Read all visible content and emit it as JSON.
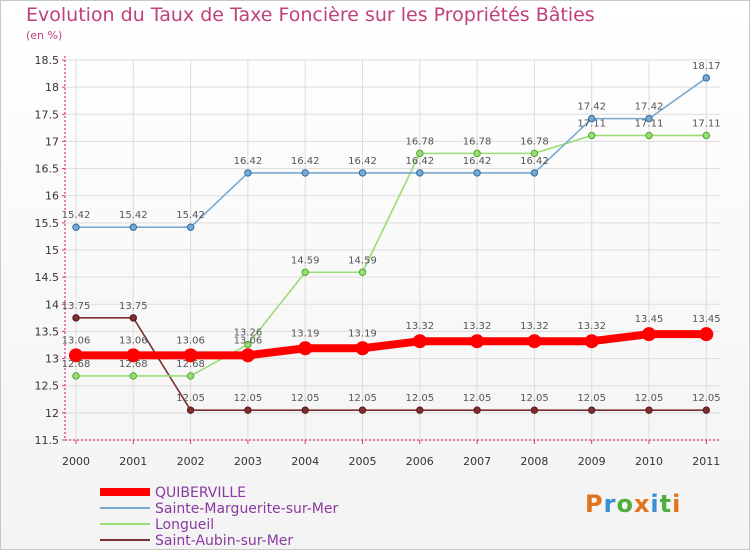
{
  "chart_data": {
    "type": "line",
    "title": "Evolution du Taux de Taxe Foncière sur les Propriétés Bâties",
    "subtitle": "(en %)",
    "x": [
      "2000",
      "2001",
      "2002",
      "2003",
      "2004",
      "2005",
      "2006",
      "2007",
      "2008",
      "2009",
      "2010",
      "2011"
    ],
    "ylim": [
      11.5,
      18.5
    ],
    "yticks": [
      "11.5",
      "12",
      "12.5",
      "13",
      "13.5",
      "14",
      "14.5",
      "15",
      "15.5",
      "16",
      "16.5",
      "17",
      "17.5",
      "18",
      "18.5"
    ],
    "series": [
      {
        "name": "QUIBERVILLE",
        "color": "#ff0000",
        "values": [
          13.06,
          13.06,
          13.06,
          13.06,
          13.19,
          13.19,
          13.32,
          13.32,
          13.32,
          13.32,
          13.45,
          13.45
        ],
        "labels": [
          "13.06",
          "13.06",
          "13.06",
          "13.06",
          "13.19",
          "13.19",
          "13.32",
          "13.32",
          "13.32",
          "13.32",
          "13.45",
          "13.45"
        ]
      },
      {
        "name": "Sainte-Marguerite-sur-Mer",
        "color": "#7aa9d0",
        "values": [
          15.42,
          15.42,
          15.42,
          16.42,
          16.42,
          16.42,
          16.42,
          16.42,
          16.42,
          17.42,
          17.42,
          18.17
        ],
        "labels": [
          "15.42",
          "15.42",
          "15.42",
          "16.42",
          "16.42",
          "16.42",
          "16.42",
          "16.42",
          "16.42",
          "17.42",
          "17.42",
          "18.17"
        ]
      },
      {
        "name": "Longueil",
        "color": "#99dd77",
        "values": [
          12.68,
          12.68,
          12.68,
          13.26,
          14.59,
          14.59,
          16.78,
          16.78,
          16.78,
          17.11,
          17.11,
          17.11
        ],
        "labels": [
          "12.68",
          "12.68",
          "12.68",
          "13.26",
          "14.59",
          "14.59",
          "16.78",
          "16.78",
          "16.78",
          "17.11",
          "17.11",
          "17.11"
        ]
      },
      {
        "name": "Saint-Aubin-sur-Mer",
        "color": "#7a3030",
        "values": [
          13.75,
          13.75,
          12.05,
          12.05,
          12.05,
          12.05,
          12.05,
          12.05,
          12.05,
          12.05,
          12.05,
          12.05
        ],
        "labels": [
          "13.75",
          "13.75",
          "12.05",
          "12.05",
          "12.05",
          "12.05",
          "12.05",
          "12.05",
          "12.05",
          "12.05",
          "12.05",
          "12.05"
        ]
      }
    ]
  },
  "logo": {
    "letters": [
      "P",
      "r",
      "o",
      "x",
      "i",
      "t",
      "i"
    ],
    "colors": [
      "#e2731b",
      "#3a8fd4",
      "#4fae3c",
      "#e2731b",
      "#3a8fd4",
      "#4fae3c",
      "#e2731b"
    ]
  }
}
